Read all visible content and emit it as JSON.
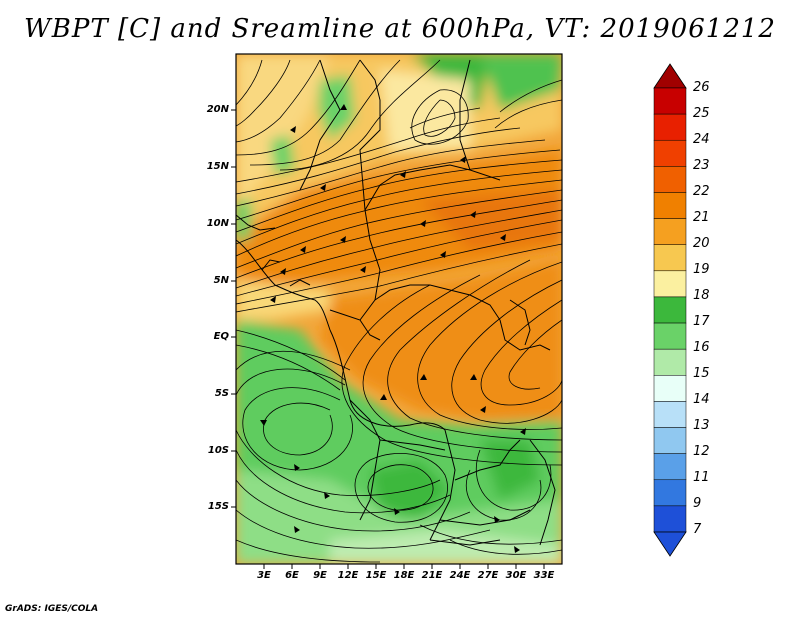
{
  "title": "WBPT [C] and Sreamline at 600hPa, VT: 2019061212",
  "credit": "GrADS: IGES/COLA",
  "map": {
    "lat_labels": [
      "20N",
      "15N",
      "10N",
      "5N",
      "EQ",
      "5S",
      "10S",
      "15S"
    ],
    "lon_labels": [
      "3E",
      "6E",
      "9E",
      "12E",
      "15E",
      "18E",
      "21E",
      "24E",
      "27E",
      "30E",
      "33E"
    ]
  },
  "colorbar": {
    "labels": [
      "26",
      "25",
      "24",
      "23",
      "22",
      "21",
      "20",
      "19",
      "18",
      "17",
      "16",
      "15",
      "14",
      "13",
      "12",
      "11",
      "9",
      "7"
    ],
    "colors": [
      "#a00000",
      "#c80000",
      "#e82000",
      "#f04000",
      "#f06000",
      "#f08000",
      "#f5a020",
      "#f7c850",
      "#fbf0a0",
      "#3cb83c",
      "#6ad268",
      "#b0eaa8",
      "#e8fff8",
      "#b8e0f8",
      "#90c8f0",
      "#5aa0e8",
      "#3278e0",
      "#1e50d8"
    ]
  }
}
